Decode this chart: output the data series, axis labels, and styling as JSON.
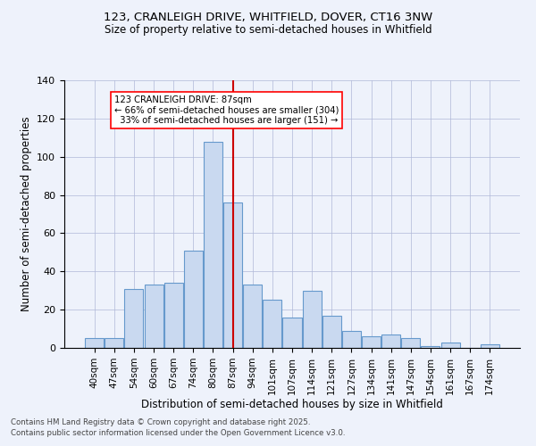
{
  "title1": "123, CRANLEIGH DRIVE, WHITFIELD, DOVER, CT16 3NW",
  "title2": "Size of property relative to semi-detached houses in Whitfield",
  "xlabel": "Distribution of semi-detached houses by size in Whitfield",
  "ylabel": "Number of semi-detached properties",
  "footnote1": "Contains HM Land Registry data © Crown copyright and database right 2025.",
  "footnote2": "Contains public sector information licensed under the Open Government Licence v3.0.",
  "annotation_line1": "123 CRANLEIGH DRIVE: 87sqm",
  "annotation_line2": "← 66% of semi-detached houses are smaller (304)",
  "annotation_line3": "  33% of semi-detached houses are larger (151) →",
  "bar_labels": [
    "40sqm",
    "47sqm",
    "54sqm",
    "60sqm",
    "67sqm",
    "74sqm",
    "80sqm",
    "87sqm",
    "94sqm",
    "101sqm",
    "107sqm",
    "114sqm",
    "121sqm",
    "127sqm",
    "134sqm",
    "141sqm",
    "147sqm",
    "154sqm",
    "161sqm",
    "167sqm",
    "174sqm"
  ],
  "bar_values": [
    5,
    5,
    31,
    33,
    34,
    51,
    108,
    76,
    33,
    25,
    16,
    30,
    17,
    9,
    6,
    7,
    5,
    1,
    3,
    0,
    2
  ],
  "bar_color": "#c9d9f0",
  "bar_edge_color": "#6699cc",
  "vline_color": "#cc0000",
  "background_color": "#eef2fb",
  "grid_color": "#b0b8d8",
  "ylim": [
    0,
    140
  ],
  "yticks": [
    0,
    20,
    40,
    60,
    80,
    100,
    120,
    140
  ]
}
